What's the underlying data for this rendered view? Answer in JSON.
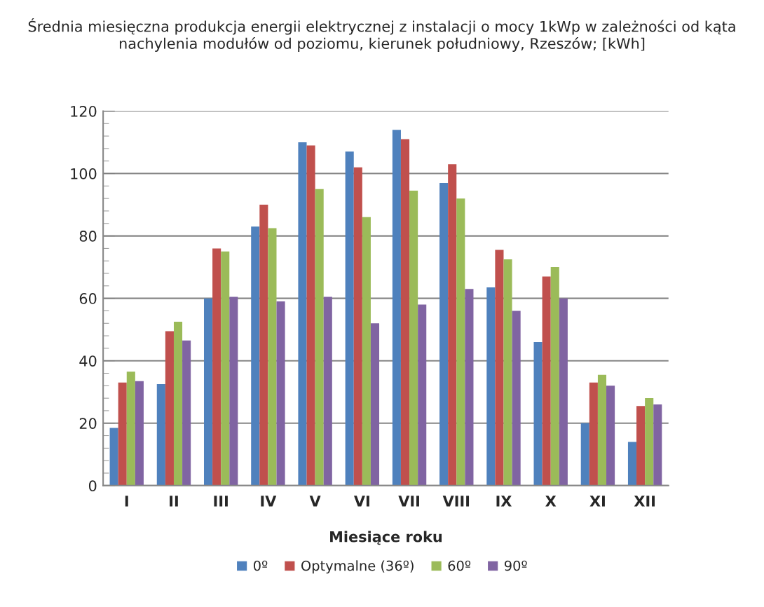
{
  "chart_data": {
    "type": "bar",
    "title": "Średnia miesięczna produkcja energii elektrycznej z instalacji o mocy 1kWp w zależności od kąta nachylenia modułów od poziomu, kierunek południowy, Rzeszów; [kWh]",
    "xlabel": "Miesiące roku",
    "categories": [
      "I",
      "II",
      "III",
      "IV",
      "V",
      "VI",
      "VII",
      "VIII",
      "IX",
      "X",
      "XI",
      "XII"
    ],
    "series": [
      {
        "name": "0º",
        "color": "#4f81bd",
        "values": [
          18.5,
          32.5,
          60,
          83,
          110,
          107,
          114,
          97,
          63.5,
          46,
          20,
          14
        ]
      },
      {
        "name": "Optymalne (36º)",
        "color": "#c0504d",
        "values": [
          33,
          49.5,
          76,
          90,
          109,
          102,
          111,
          103,
          75.5,
          67,
          33,
          25.5
        ]
      },
      {
        "name": "60º",
        "color": "#9bbb59",
        "values": [
          36.5,
          52.5,
          75,
          82.5,
          95,
          86,
          94.5,
          92,
          72.5,
          70,
          35.5,
          28
        ]
      },
      {
        "name": "90º",
        "color": "#8064a2",
        "values": [
          33.5,
          46.5,
          60.5,
          59,
          60.5,
          52,
          58,
          63,
          56,
          60,
          32,
          26
        ]
      }
    ],
    "ylim": [
      0,
      120
    ],
    "yticks": [
      0,
      {
        "value": 4,
        "label": null
      },
      {
        "value": 8,
        "label": null
      },
      {
        "value": 12,
        "label": null
      },
      {
        "value": 16,
        "label": null
      },
      20,
      {
        "value": 24,
        "label": null
      },
      {
        "value": 28,
        "label": null
      },
      {
        "value": 32,
        "label": null
      },
      {
        "value": 36,
        "label": null
      },
      40,
      {
        "value": 44,
        "label": null
      },
      {
        "value": 48,
        "label": null
      },
      {
        "value": 52,
        "label": null
      },
      {
        "value": 56,
        "label": null
      },
      60,
      {
        "value": 64,
        "label": null
      },
      {
        "value": 68,
        "label": null
      },
      {
        "value": 72,
        "label": null
      },
      {
        "value": 76,
        "label": null
      },
      80,
      {
        "value": 84,
        "label": null
      },
      {
        "value": 88,
        "label": null
      },
      {
        "value": 92,
        "label": null
      },
      {
        "value": 96,
        "label": null
      },
      100,
      {
        "value": 104,
        "label": null
      },
      {
        "value": 108,
        "label": null
      },
      {
        "value": 112,
        "label": null
      },
      {
        "value": 116,
        "label": null
      },
      120
    ],
    "grid": "y",
    "legend": "bottom"
  }
}
